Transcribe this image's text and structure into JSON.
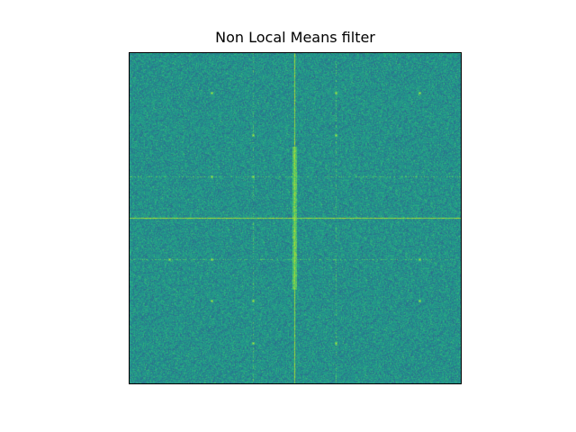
{
  "title": "Non Local Means filter",
  "image": {
    "kind": "fft-magnitude-spectrum",
    "colormap": "viridis",
    "colors": {
      "base": "#21918c",
      "dark": "#2c728e",
      "light": "#5ec962",
      "bright": "#b5de2b",
      "peak": "#fde725"
    },
    "axes_ticks_visible": false
  }
}
